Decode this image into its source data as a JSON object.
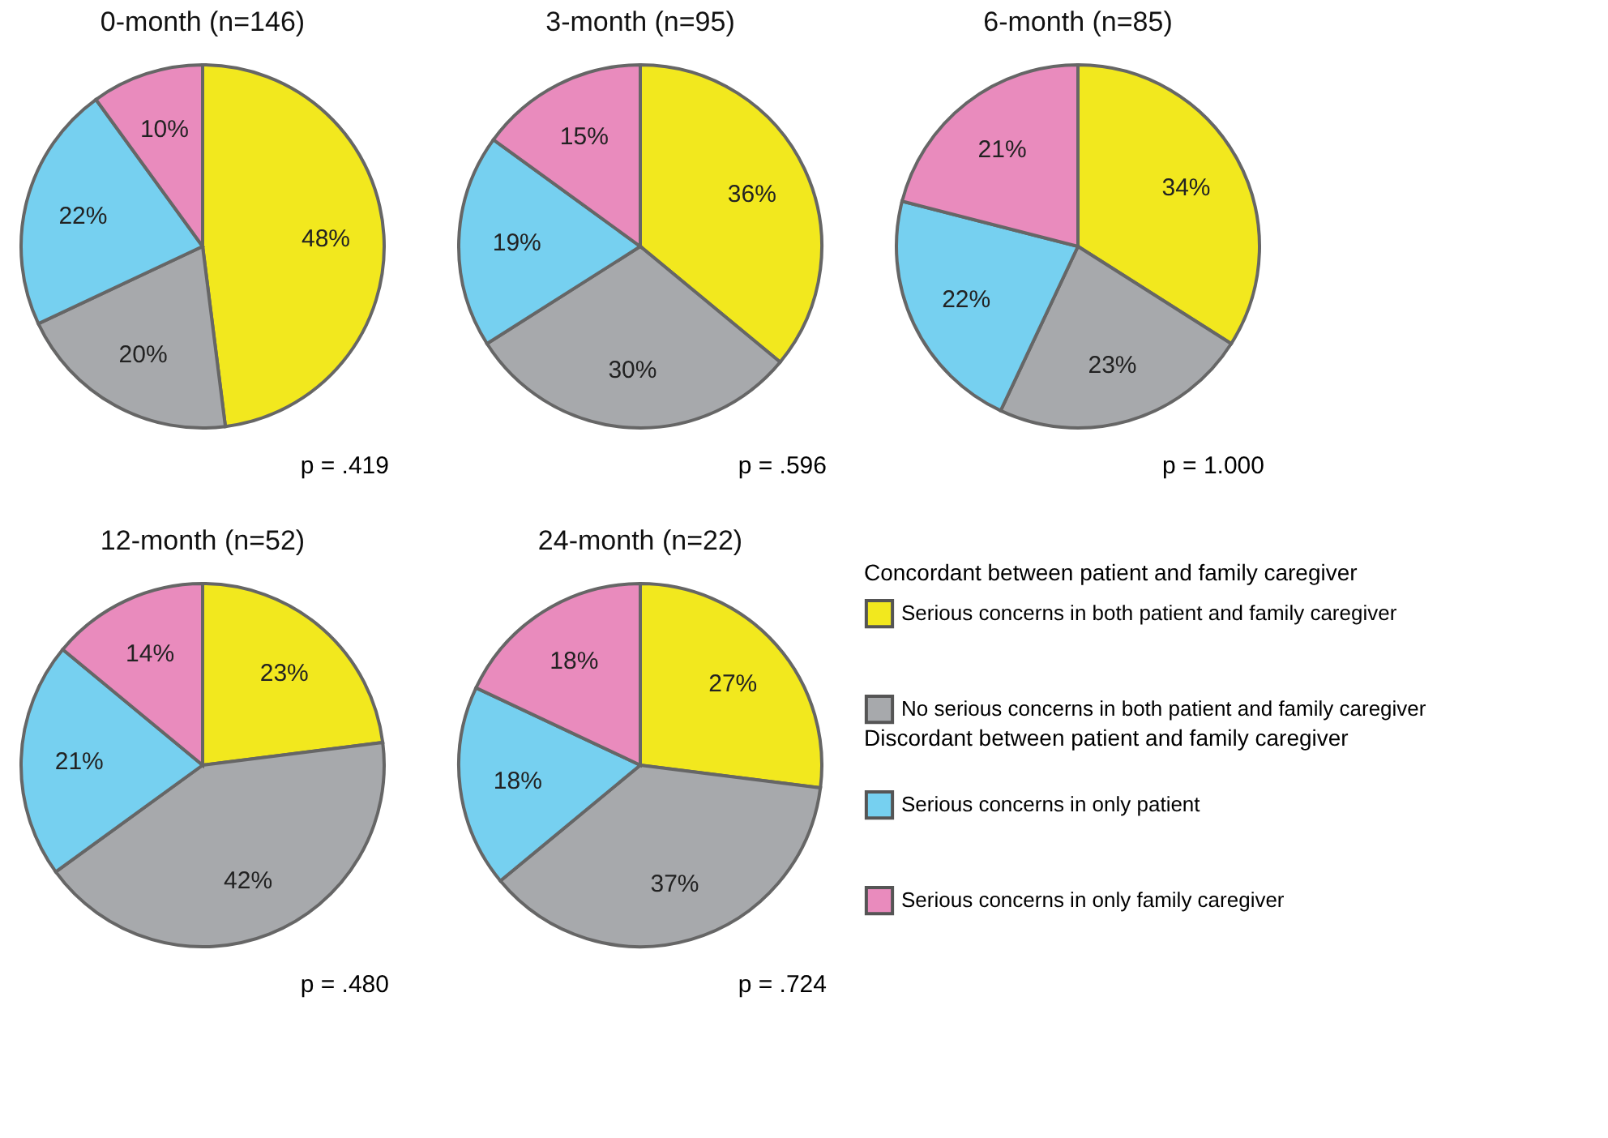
{
  "chart_data": [
    {
      "type": "pie",
      "title": "0-month (n=146)",
      "categories": [
        null,
        null,
        null,
        null
      ],
      "values": [
        48,
        20,
        22,
        10
      ],
      "value_labels": [
        "48%",
        "20%",
        "22%",
        "10%"
      ],
      "colors": [
        "#f2e81e",
        "#a7a9ac",
        "#76d0f0",
        "#e98bbd"
      ],
      "annotations": [
        "p = .419"
      ],
      "legend": false
    },
    {
      "type": "pie",
      "title": "3-month (n=95)",
      "categories": [
        null,
        null,
        null,
        null
      ],
      "values": [
        36,
        30,
        19,
        15
      ],
      "value_labels": [
        "36%",
        "30%",
        "19%",
        "15%"
      ],
      "colors": [
        "#f2e81e",
        "#a7a9ac",
        "#76d0f0",
        "#e98bbd"
      ],
      "annotations": [
        "p = .596"
      ],
      "legend": false
    },
    {
      "type": "pie",
      "title": "6-month (n=85)",
      "categories": [
        null,
        null,
        null,
        null
      ],
      "values": [
        34,
        23,
        22,
        21
      ],
      "value_labels": [
        "34%",
        "23%",
        "22%",
        "21%"
      ],
      "colors": [
        "#f2e81e",
        "#a7a9ac",
        "#76d0f0",
        "#e98bbd"
      ],
      "annotations": [
        "p = 1.000"
      ],
      "legend": false
    },
    {
      "type": "pie",
      "title": "12-month (n=52)",
      "categories": [
        null,
        null,
        null,
        null
      ],
      "values": [
        23,
        42,
        21,
        14
      ],
      "value_labels": [
        "23%",
        "42%",
        "21%",
        "14%"
      ],
      "colors": [
        "#f2e81e",
        "#a7a9ac",
        "#76d0f0",
        "#e98bbd"
      ],
      "annotations": [
        "p = .480"
      ],
      "legend": false
    },
    {
      "type": "pie",
      "title": "24-month (n=22)",
      "categories": [
        "Serious concerns in both patient and family caregiver",
        "No serious concerns in both patient and family caregiver",
        "Serious concerns in only patient",
        "Serious concerns in only family caregiver"
      ],
      "values": [
        27,
        37,
        18,
        18
      ],
      "value_labels": [
        "27%",
        "37%",
        "18%",
        "18%"
      ],
      "colors": [
        "#f2e81e",
        "#a7a9ac",
        "#76d0f0",
        "#e98bbd"
      ],
      "annotations": [
        "p = .724",
        "Discordant between patient and family caregiver"
      ],
      "legend_title": "Concordant between patient and family caregiver",
      "legend": "right"
    }
  ]
}
